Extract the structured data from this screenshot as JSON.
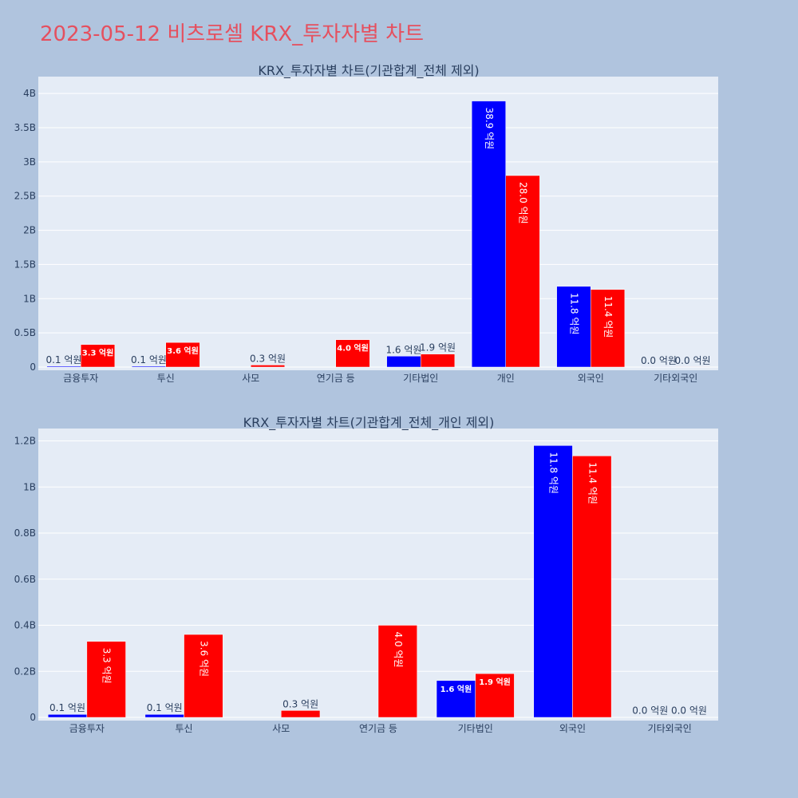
{
  "page_title": "2023-05-12 비츠로셀 KRX_투자자별 차트",
  "colors": {
    "background": "#b0c4de",
    "plot_bg": "#e5ecf6",
    "title": "#e5505f",
    "series1": "#0000ff",
    "series2": "#ff0000"
  },
  "chart_data": [
    {
      "type": "bar",
      "title": "KRX_투자자별 차트(기관합계_전체 제외)",
      "categories": [
        "금융투자",
        "투신",
        "사모",
        "연기금 등",
        "기타법인",
        "개인",
        "외국인",
        "기타외국인"
      ],
      "series": [
        {
          "color": "#0000ff",
          "values": [
            0.013,
            0.013,
            0,
            0,
            0.16,
            3.89,
            1.18,
            0.001
          ],
          "labels": [
            "0.1 억원",
            "0.1 억원",
            "",
            "",
            "1.6 억원",
            "38.9 억원",
            "11.8 억원",
            "0.0 억원"
          ]
        },
        {
          "color": "#ff0000",
          "values": [
            0.33,
            0.36,
            0.03,
            0.4,
            0.19,
            2.8,
            1.135,
            0.001
          ],
          "labels": [
            "3.3 억원",
            "3.6 억원",
            "0.3 억원",
            "4.0 억원",
            "1.9 억원",
            "28.0 억원",
            "11.4 억원",
            "0.0 억원"
          ]
        }
      ],
      "ylim": [
        0,
        4.2
      ],
      "yticks": [
        0,
        0.5,
        1,
        1.5,
        2,
        2.5,
        3,
        3.5,
        4
      ],
      "yticklabels": [
        "0",
        "0.5B",
        "1B",
        "1.5B",
        "2B",
        "2.5B",
        "3B",
        "3.5B",
        "4B"
      ],
      "grid": true
    },
    {
      "type": "bar",
      "title": "KRX_투자자별 차트(기관합계_전체_개인 제외)",
      "categories": [
        "금융투자",
        "투신",
        "사모",
        "연기금 등",
        "기타법인",
        "외국인",
        "기타외국인"
      ],
      "series": [
        {
          "color": "#0000ff",
          "values": [
            0.013,
            0.013,
            0,
            0,
            0.16,
            1.18,
            0.001
          ],
          "labels": [
            "0.1 억원",
            "0.1 억원",
            "",
            "",
            "1.6 억원",
            "11.8 억원",
            "0.0 억원"
          ]
        },
        {
          "color": "#ff0000",
          "values": [
            0.33,
            0.36,
            0.03,
            0.4,
            0.19,
            1.135,
            0.001
          ],
          "labels": [
            "3.3 억원",
            "3.6 억원",
            "0.3 억원",
            "4.0 억원",
            "1.9 억원",
            "11.4 억원",
            "0.0 억원"
          ]
        }
      ],
      "ylim": [
        0,
        1.24
      ],
      "yticks": [
        0,
        0.2,
        0.4,
        0.6,
        0.8,
        1,
        1.2
      ],
      "yticklabels": [
        "0",
        "0.2B",
        "0.4B",
        "0.6B",
        "0.8B",
        "1B",
        "1.2B"
      ],
      "grid": true
    }
  ]
}
